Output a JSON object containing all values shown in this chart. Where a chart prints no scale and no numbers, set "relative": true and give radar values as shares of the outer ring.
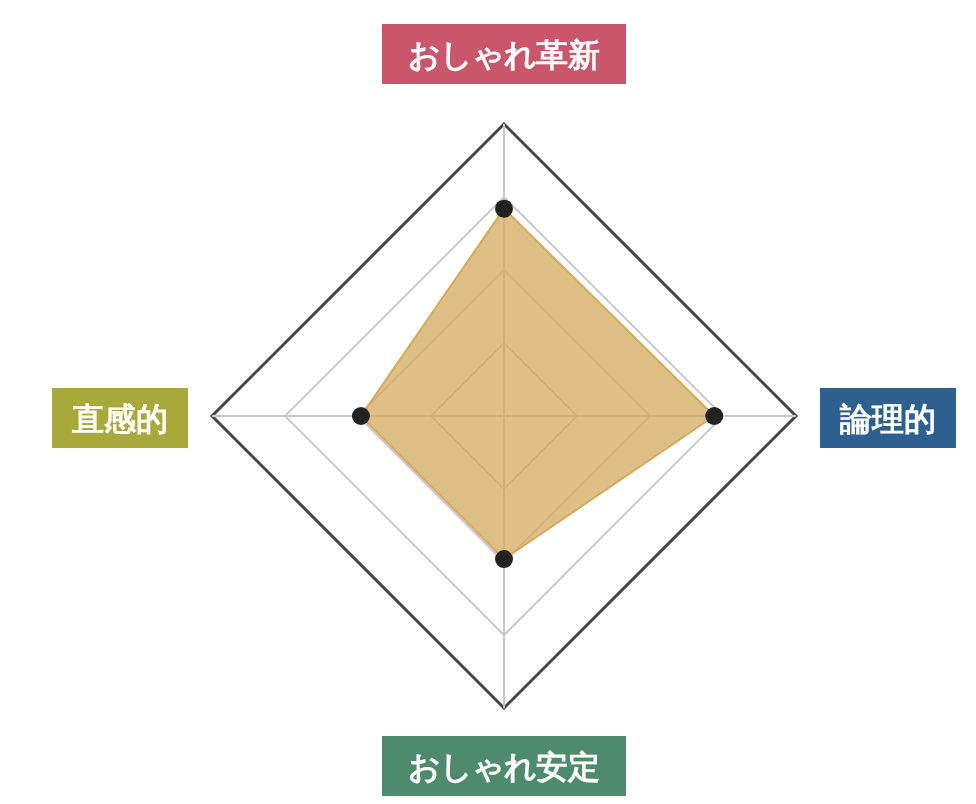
{
  "chart_data": {
    "type": "radar",
    "relative": true,
    "grid": true,
    "marker": "circle",
    "categories": [
      "おしゃれ革新",
      "論理的",
      "おしゃれ安定",
      "直感的"
    ],
    "series": [
      {
        "color": "#d4aa5c",
        "values": [
          0.71,
          0.72,
          0.49,
          0.49
        ]
      }
    ]
  }
}
